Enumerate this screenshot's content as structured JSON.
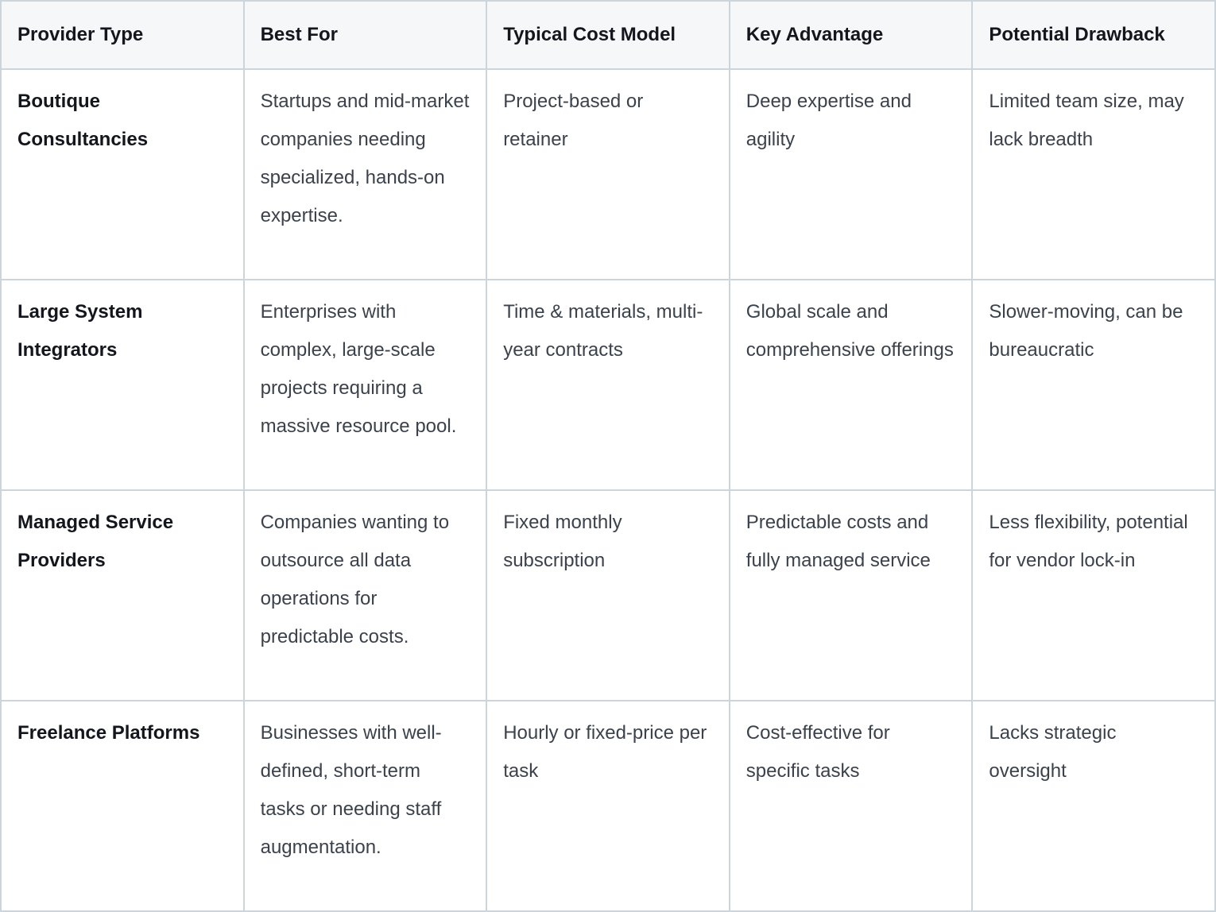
{
  "colors": {
    "border": "#ccd4dc",
    "header_background": "#f5f7f9",
    "header_text": "#13161c",
    "body_text": "#3b424c",
    "cell_background": "#ffffff"
  },
  "table": {
    "columns": [
      "Provider Type",
      "Best For",
      "Typical Cost Model",
      "Key Advantage",
      "Potential Drawback"
    ],
    "rows": [
      [
        "Boutique Consultancies",
        "Startups and mid-market companies needing specialized, hands-on expertise.",
        "Project-based or retainer",
        "Deep expertise and agility",
        "Limited team size, may lack breadth"
      ],
      [
        "Large System Integrators",
        "Enterprises with complex, large-scale projects requiring a massive resource pool.",
        "Time & materials, multi-year contracts",
        "Global scale and comprehensive offerings",
        "Slower-moving, can be bureaucratic"
      ],
      [
        "Managed Service Providers",
        "Companies wanting to outsource all data operations for predictable costs.",
        "Fixed monthly subscription",
        "Predictable costs and fully managed service",
        "Less flexibility, potential for vendor lock-in"
      ],
      [
        "Freelance Platforms",
        "Businesses with well-defined, short-term tasks or needing staff augmentation.",
        "Hourly or fixed-price per task",
        "Cost-effective for specific tasks",
        "Lacks strategic oversight"
      ]
    ]
  }
}
